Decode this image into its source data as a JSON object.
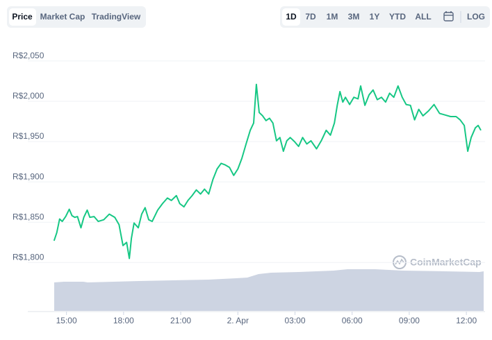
{
  "tabs": {
    "views": [
      "Price",
      "Market Cap",
      "TradingView"
    ],
    "active": "Price",
    "ranges": [
      "1D",
      "7D",
      "1M",
      "3M",
      "1Y",
      "YTD",
      "ALL"
    ],
    "active_range": "1D",
    "log": "LOG"
  },
  "watermark": "CoinMarketCap",
  "chart_data": {
    "type": "line",
    "x": [
      14.35,
      14.49,
      14.64,
      14.78,
      14.96,
      15.15,
      15.29,
      15.44,
      15.58,
      15.76,
      15.91,
      16.09,
      16.23,
      16.45,
      16.67,
      16.96,
      17.25,
      17.54,
      17.76,
      17.97,
      18.16,
      18.3,
      18.41,
      18.55,
      18.77,
      18.95,
      19.13,
      19.32,
      19.5,
      19.79,
      20.04,
      20.3,
      20.51,
      20.77,
      20.95,
      21.17,
      21.38,
      21.6,
      21.82,
      22.04,
      22.25,
      22.47,
      22.69,
      22.91,
      23.12,
      23.34,
      23.56,
      23.78,
      24.0,
      24.21,
      24.43,
      24.65,
      24.83,
      24.97,
      25.12,
      25.3,
      25.48,
      25.66,
      25.84,
      26.03,
      26.21,
      26.39,
      26.57,
      26.75,
      26.97,
      27.19,
      27.4,
      27.62,
      27.84,
      28.13,
      28.38,
      28.64,
      28.86,
      29.07,
      29.22,
      29.36,
      29.51,
      29.65,
      29.87,
      30.09,
      30.31,
      30.45,
      30.67,
      30.89,
      31.1,
      31.32,
      31.54,
      31.76,
      31.97,
      32.19,
      32.41,
      32.63,
      32.84,
      33.06,
      33.28,
      33.5,
      33.72,
      34.01,
      34.3,
      34.59,
      34.88,
      35.17,
      35.46,
      35.67,
      35.89,
      36.07,
      36.25,
      36.47,
      36.62,
      36.76
    ],
    "series": [
      {
        "name": "Price",
        "color": "#16c784",
        "values": [
          1827,
          1837,
          1854,
          1851,
          1857,
          1866,
          1858,
          1856,
          1857,
          1843,
          1856,
          1865,
          1856,
          1857,
          1851,
          1853,
          1860,
          1856,
          1847,
          1821,
          1825,
          1805,
          1830,
          1849,
          1843,
          1860,
          1868,
          1853,
          1851,
          1865,
          1873,
          1880,
          1877,
          1883,
          1873,
          1869,
          1877,
          1883,
          1890,
          1885,
          1891,
          1885,
          1903,
          1916,
          1923,
          1921,
          1918,
          1908,
          1916,
          1929,
          1947,
          1964,
          1973,
          2021,
          1986,
          1982,
          1976,
          1979,
          1973,
          1951,
          1955,
          1938,
          1951,
          1955,
          1950,
          1944,
          1955,
          1947,
          1951,
          1941,
          1951,
          1964,
          1958,
          1973,
          1995,
          2012,
          1999,
          2005,
          1996,
          2005,
          2003,
          2019,
          1995,
          2008,
          2014,
          2002,
          2005,
          1999,
          2010,
          2005,
          2019,
          2005,
          1996,
          1995,
          1977,
          1990,
          1982,
          1988,
          1996,
          1985,
          1983,
          1981,
          1981,
          1977,
          1970,
          1938,
          1955,
          1967,
          1970,
          1964
        ]
      }
    ],
    "xlim": [
      12.97,
      36.98
    ],
    "xticks": [
      {
        "value": 15,
        "label": "15:00"
      },
      {
        "value": 18,
        "label": "18:00"
      },
      {
        "value": 21,
        "label": "21:00"
      },
      {
        "value": 24,
        "label": "2. Apr"
      },
      {
        "value": 27,
        "label": "03:00"
      },
      {
        "value": 30,
        "label": "06:00"
      },
      {
        "value": 33,
        "label": "09:00"
      },
      {
        "value": 36,
        "label": "12:00"
      }
    ],
    "ylim": [
      1740,
      2074
    ],
    "yticks": [
      {
        "value": 1800,
        "label": "R$1,800"
      },
      {
        "value": 1850,
        "label": "R$1,850"
      },
      {
        "value": 1900,
        "label": "R$1,900"
      },
      {
        "value": 1950,
        "label": "R$1,950"
      },
      {
        "value": 2000,
        "label": "R$2,000"
      },
      {
        "value": 2050,
        "label": "R$2,050"
      }
    ],
    "grid": true
  }
}
